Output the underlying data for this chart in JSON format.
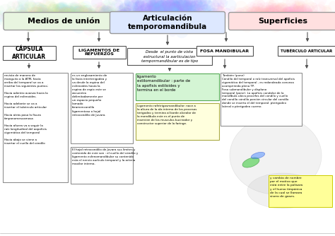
{
  "bg_color": "#ffffff",
  "title_center": "Articulación\ntemporomandibula",
  "title_left": "Medios de unión",
  "title_right": "Superficies",
  "box_left1": "CÁPSULA\nARTICULAR",
  "box_left2": "LIGAMENTOS DE\nREFUERZOS",
  "box_center": "Desde  el punto de vista\nestructural la aarticulacion\ntempormandibular es de tipo",
  "box_right1": "FOSA MANDIBULAR",
  "box_right2": "TUBÉRCULO ARTICULAR",
  "box_green": "ligamento\nestilomandibular : parte de\nla apofisis estiloides y\ntermina en el borde",
  "box_yellow": "Ligamento rafetrigosmandibular: nace a\nla altura de la ala interna de los procesos\nterigodeo y termina al borde alveolar de\nla mandibula este es el punto de\ninserción de los musculos bucinador y\nconstructor superior de la faringe.",
  "text_left_top": "revista de manera de\nmanguito a la ATM, hacia\narriba del temporal se va a\ninsertar los siguientes puntos;\n\nHacia adentro avanza hacia la\nespina del esfenoides.\n\nHacia adelante se va a\ninsertar el tubérculo articular\n\nHacia atrás pasa la fisura\ntimpanomescamosa\n\nHacia afuera va a seguir la\nraíz longitudinal del aopoficis\ncigomática del temporal\n\nHacia abajo se viene a\ninsertar el cuello del cóndilo",
  "text_left_mid": "es un englosamiento de\nla facia interterigodea y\nva desde la espina del\nesfenoides hasta la\nespina de espix este se\nencuentra\ndelimitadamente por\nun espacio pequeño\nllamado\nforamencondilo\nligamentoso o hojal\nretrocondilio de Juvara.",
  "text_left_bot": "El hojal retrocondilio de Juvara sus limites y\ncontenido de este son : el cuello del cóndilo y\nligamento esfenomandibular su contenido\nesta el nervio aurículo temporal y la arteria\nmaxilar interna.",
  "text_right_top": "También (pone)\nCóndilo del temporal o raíz transversal del apoficis\ncigomática del temporal , es redondeada convexa\nacomprimida plena TP.\nFosa submandibular y displano\ntemporal (pone). La apoficis condolar de la\nmandíbula ubica procefos del cóndilo y cuello\ndel condilo cóndilo porción circular del condilo\ndonde se inserta el del temporal: pterigodeo\nlateral o pterigodeo cuerno.",
  "text_right_bot": "y cambia de nombre\npor el motivo que\nestá entre la polisara\ny el hueso timpónica\nde la cual se llamara\nsisero de gases.",
  "pill_fill_left": "#e8f5e0",
  "pill_fill_center": "#dde8ff",
  "pill_fill_right": "#ffe0e0",
  "arrow_color": "#555555"
}
